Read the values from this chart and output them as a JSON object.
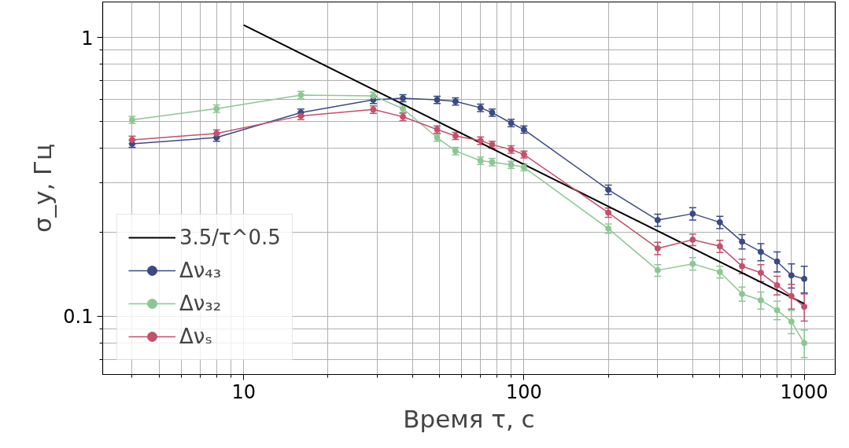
{
  "chart_data": {
    "type": "line",
    "xlabel": "Время τ, с",
    "ylabel": "σ_y, Гц",
    "log": "xy",
    "grid": true,
    "legend": "bottom left",
    "marker": "circle",
    "x": [
      4,
      8,
      16,
      29,
      37,
      49,
      57,
      70,
      77,
      90,
      100,
      200,
      300,
      400,
      500,
      600,
      700,
      800,
      900,
      1000
    ],
    "xlim": [
      3.14,
      1290
    ],
    "ylim": [
      0.0617,
      1.34
    ],
    "xticks": [
      {
        "value": 4,
        "label": null
      },
      {
        "value": 5,
        "label": null
      },
      {
        "value": 6,
        "label": null
      },
      {
        "value": 7,
        "label": null
      },
      {
        "value": 8,
        "label": null
      },
      {
        "value": 9,
        "label": null
      },
      10,
      {
        "value": 20,
        "label": null
      },
      {
        "value": 30,
        "label": null
      },
      {
        "value": 40,
        "label": null
      },
      {
        "value": 50,
        "label": null
      },
      {
        "value": 60,
        "label": null
      },
      {
        "value": 70,
        "label": null
      },
      {
        "value": 80,
        "label": null
      },
      {
        "value": 90,
        "label": null
      },
      100,
      {
        "value": 200,
        "label": null
      },
      {
        "value": 300,
        "label": null
      },
      {
        "value": 400,
        "label": null
      },
      {
        "value": 500,
        "label": null
      },
      {
        "value": 600,
        "label": null
      },
      {
        "value": 700,
        "label": null
      },
      {
        "value": 800,
        "label": null
      },
      {
        "value": 900,
        "label": null
      },
      1000
    ],
    "yticks": [
      {
        "value": 0.07,
        "label": null
      },
      {
        "value": 0.08,
        "label": null
      },
      {
        "value": 0.09,
        "label": null
      },
      0.1,
      {
        "value": 0.2,
        "label": null
      },
      {
        "value": 0.3,
        "label": null
      },
      {
        "value": 0.4,
        "label": null
      },
      {
        "value": 0.5,
        "label": null
      },
      {
        "value": 0.6,
        "label": null
      },
      {
        "value": 0.7,
        "label": null
      },
      {
        "value": 0.8,
        "label": null
      },
      {
        "value": 0.9,
        "label": null
      },
      1
    ],
    "series": [
      {
        "name": "3.5/τ^0.5",
        "color": "#000000",
        "marker": "none",
        "x": [
          10,
          1000
        ],
        "values": [
          1.107,
          0.1107
        ]
      },
      {
        "name": "Δν₄₃",
        "color": "#3b4a84",
        "values": [
          0.415,
          0.437,
          0.537,
          0.597,
          0.605,
          0.597,
          0.589,
          0.559,
          0.537,
          0.493,
          0.467,
          0.284,
          0.221,
          0.233,
          0.217,
          0.185,
          0.17,
          0.157,
          0.14,
          0.136
        ],
        "errors": [
          0.012,
          0.013,
          0.016,
          0.018,
          0.018,
          0.018,
          0.018,
          0.017,
          0.016,
          0.015,
          0.014,
          0.011,
          0.011,
          0.012,
          0.011,
          0.011,
          0.012,
          0.013,
          0.014,
          0.015
        ]
      },
      {
        "name": "Δν₃₂",
        "color": "#8cc793",
        "values": [
          0.506,
          0.555,
          0.621,
          0.617,
          0.555,
          0.437,
          0.391,
          0.361,
          0.357,
          0.349,
          0.342,
          0.206,
          0.146,
          0.154,
          0.144,
          0.12,
          0.114,
          0.105,
          0.0955,
          0.08
        ],
        "errors": [
          0.015,
          0.017,
          0.019,
          0.019,
          0.017,
          0.013,
          0.012,
          0.011,
          0.011,
          0.01,
          0.01,
          0.008,
          0.007,
          0.008,
          0.007,
          0.007,
          0.008,
          0.008,
          0.009,
          0.009
        ]
      },
      {
        "name": "Δνₛ",
        "color": "#c4506b",
        "values": [
          0.429,
          0.452,
          0.523,
          0.551,
          0.519,
          0.467,
          0.443,
          0.426,
          0.412,
          0.396,
          0.38,
          0.235,
          0.175,
          0.188,
          0.178,
          0.151,
          0.143,
          0.129,
          0.118,
          0.108
        ],
        "errors": [
          0.013,
          0.014,
          0.016,
          0.017,
          0.016,
          0.014,
          0.013,
          0.013,
          0.012,
          0.012,
          0.011,
          0.009,
          0.009,
          0.009,
          0.009,
          0.009,
          0.01,
          0.01,
          0.012,
          0.012
        ]
      }
    ]
  }
}
